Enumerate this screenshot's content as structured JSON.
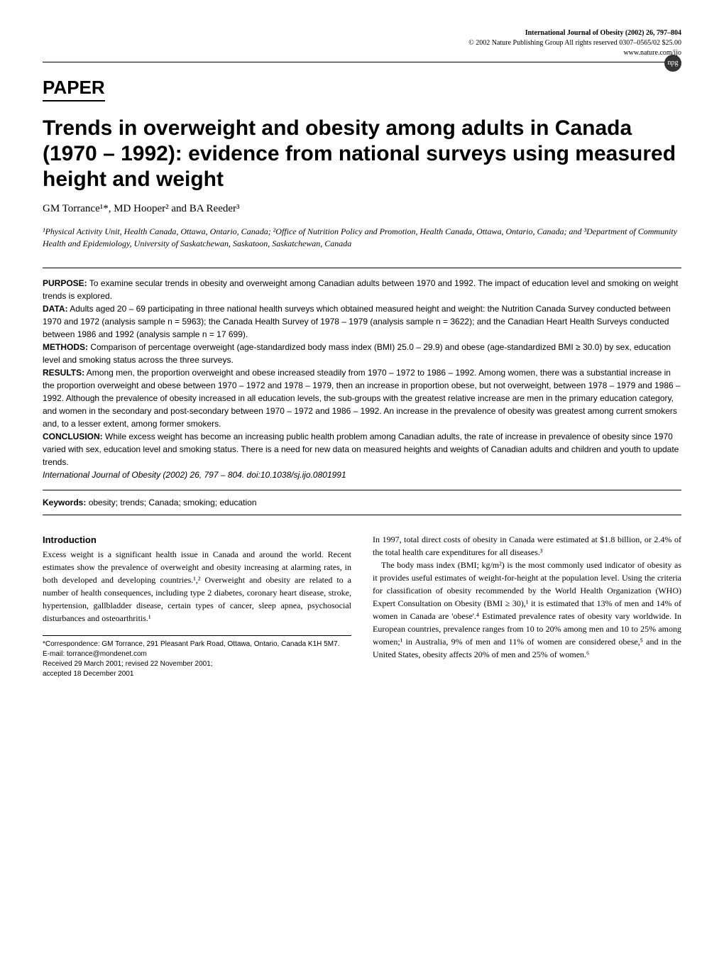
{
  "header": {
    "journal_line": "International Journal of Obesity (2002) 26, 797–804",
    "copyright": "© 2002 Nature Publishing Group   All rights reserved  0307–0565/02  $25.00",
    "url": "www.nature.com/ijo",
    "logo_text": "npg"
  },
  "paper_label": "PAPER",
  "title": "Trends in overweight and obesity among adults in Canada (1970 – 1992): evidence from national surveys using measured height and weight",
  "authors": "GM Torrance¹*, MD Hooper² and BA Reeder³",
  "affiliations": "¹Physical Activity Unit, Health Canada, Ottawa, Ontario, Canada; ²Office of Nutrition Policy and Promotion, Health Canada, Ottawa, Ontario, Canada; and ³Department of Community Health and Epidemiology, University of Saskatchewan, Saskatoon, Saskatchewan, Canada",
  "abstract": {
    "purpose_label": "PURPOSE:",
    "purpose": " To examine secular trends in obesity and overweight among Canadian adults between 1970 and 1992. The impact of education level and smoking on weight trends is explored.",
    "data_label": "DATA:",
    "data": " Adults aged 20 – 69 participating in three national health surveys which obtained measured height and weight: the Nutrition Canada Survey conducted between 1970 and 1972 (analysis sample n = 5963); the Canada Health Survey of 1978 – 1979 (analysis sample n = 3622); and the Canadian Heart Health Surveys conducted between 1986 and 1992 (analysis sample n = 17 699).",
    "methods_label": "METHODS:",
    "methods": " Comparison of percentage overweight (age-standardized body mass index (BMI) 25.0 – 29.9) and obese (age-standardized BMI ≥ 30.0) by sex, education level and smoking status across the three surveys.",
    "results_label": "RESULTS:",
    "results": " Among men, the proportion overweight and obese increased steadily from 1970 – 1972 to 1986 – 1992. Among women, there was a substantial increase in the proportion overweight and obese between 1970 – 1972 and 1978 – 1979, then an increase in proportion obese, but not overweight, between 1978 – 1979 and 1986 – 1992. Although the prevalence of obesity increased in all education levels, the sub-groups with the greatest relative increase are men in the primary education category, and women in the secondary and post-secondary between 1970 – 1972 and 1986 – 1992. An increase in the prevalence of obesity was greatest among current smokers and, to a lesser extent, among former smokers.",
    "conclusion_label": "CONCLUSION:",
    "conclusion": " While excess weight has become an increasing public health problem among Canadian adults, the rate of increase in prevalence of obesity since 1970 varied with sex, education level and smoking status. There is a need for new data on measured heights and weights of Canadian adults and children and youth to update trends.",
    "citation": "International Journal of Obesity (2002) 26, 797 – 804. doi:10.1038/sj.ijo.0801991"
  },
  "keywords": {
    "label": "Keywords:",
    "text": " obesity; trends; Canada; smoking; education"
  },
  "body": {
    "intro_heading": "Introduction",
    "col1_p1": "Excess weight is a significant health issue in Canada and around the world. Recent estimates show the prevalence of overweight and obesity increasing at alarming rates, in both developed and developing countries.¹,² Overweight and obesity are related to a number of health consequences, including type 2 diabetes, coronary heart disease, stroke, hypertension, gallbladder disease, certain types of cancer, sleep apnea, psychosocial disturbances and osteoarthritis.¹",
    "col2_p1": "In 1997, total direct costs of obesity in Canada were estimated at $1.8 billion, or 2.4% of the total health care expenditures for all diseases.³",
    "col2_p2": "The body mass index (BMI; kg/m²) is the most commonly used indicator of obesity as it provides useful estimates of weight-for-height at the population level. Using the criteria for classification of obesity recommended by the World Health Organization (WHO) Expert Consultation on Obesity (BMI ≥ 30),¹ it is estimated that 13% of men and 14% of women in Canada are 'obese'.⁴ Estimated prevalence rates of obesity vary worldwide. In European countries, prevalence ranges from 10 to 20% among men and 10 to 25% among women;¹ in Australia, 9% of men and 11% of women are considered obese,⁵ and in the United States, obesity affects 20% of men and 25% of women.⁶"
  },
  "footnote": {
    "correspondence": "*Correspondence: GM Torrance, 291 Pleasant Park Road, Ottawa, Ontario, Canada K1H 5M7.",
    "email": "E-mail: torrance@mondenet.com",
    "received": "Received 29 March 2001; revised 22 November 2001;",
    "accepted": "accepted 18 December 2001"
  }
}
